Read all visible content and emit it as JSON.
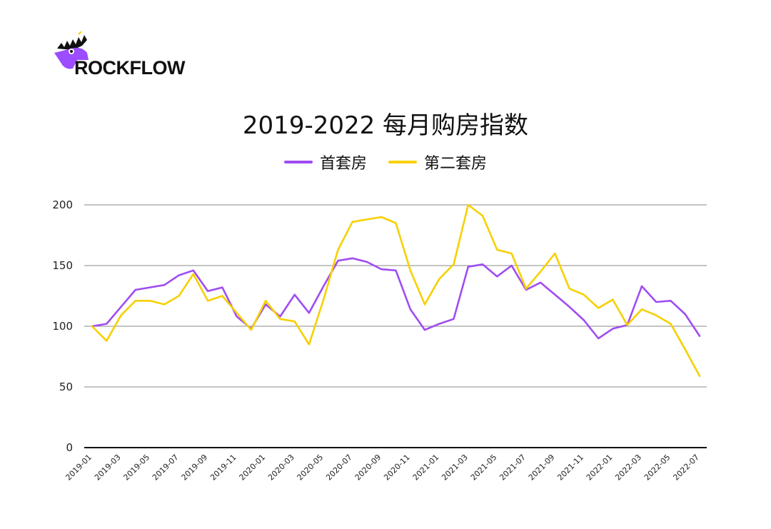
{
  "brand": {
    "name": "ROCKFLOW",
    "accent": "#9b4dff"
  },
  "chart_data": {
    "type": "line",
    "title": "2019-2022 每月购房指数",
    "xlabel": "",
    "ylabel": "",
    "ylim": [
      0,
      200
    ],
    "yticks": [
      0,
      50,
      100,
      150,
      200
    ],
    "grid": true,
    "legend_position": "top-center",
    "x": [
      "2019-01",
      "2019-02",
      "2019-03",
      "2019-04",
      "2019-05",
      "2019-06",
      "2019-07",
      "2019-08",
      "2019-09",
      "2019-10",
      "2019-11",
      "2019-12",
      "2020-01",
      "2020-02",
      "2020-03",
      "2020-04",
      "2020-05",
      "2020-06",
      "2020-07",
      "2020-08",
      "2020-09",
      "2020-10",
      "2020-11",
      "2020-12",
      "2021-01",
      "2021-02",
      "2021-03",
      "2021-04",
      "2021-05",
      "2021-06",
      "2021-07",
      "2021-08",
      "2021-09",
      "2021-10",
      "2021-11",
      "2021-12",
      "2022-01",
      "2022-02",
      "2022-03",
      "2022-04",
      "2022-05",
      "2022-06",
      "2022-07"
    ],
    "xticks": [
      "2019-01",
      "2019-03",
      "2019-05",
      "2019-07",
      "2019-09",
      "2019-11",
      "2020-01",
      "2020-03",
      "2020-05",
      "2020-07",
      "2020-09",
      "2020-11",
      "2021-01",
      "2021-03",
      "2021-05",
      "2021-07",
      "2021-09",
      "2021-11",
      "2022-01",
      "2022-03",
      "2022-05",
      "2022-07"
    ],
    "series": [
      {
        "name": "首套房",
        "color": "#a04cf2",
        "values": [
          100,
          102,
          116,
          130,
          132,
          134,
          142,
          146,
          129,
          132,
          108,
          98,
          118,
          108,
          126,
          111,
          133,
          154,
          156,
          153,
          147,
          146,
          114,
          97,
          102,
          106,
          149,
          151,
          141,
          150,
          130,
          136,
          126,
          116,
          105,
          90,
          98,
          101,
          133,
          120,
          121,
          110,
          92
        ]
      },
      {
        "name": "第二套房",
        "color": "#f7d000",
        "values": [
          100,
          88,
          109,
          121,
          121,
          118,
          125,
          143,
          121,
          125,
          111,
          97,
          121,
          106,
          104,
          85,
          122,
          163,
          186,
          188,
          190,
          185,
          146,
          118,
          139,
          151,
          200,
          191,
          163,
          160,
          131,
          145,
          160,
          131,
          126,
          115,
          122,
          101,
          114,
          109,
          102,
          81,
          59
        ]
      }
    ]
  }
}
